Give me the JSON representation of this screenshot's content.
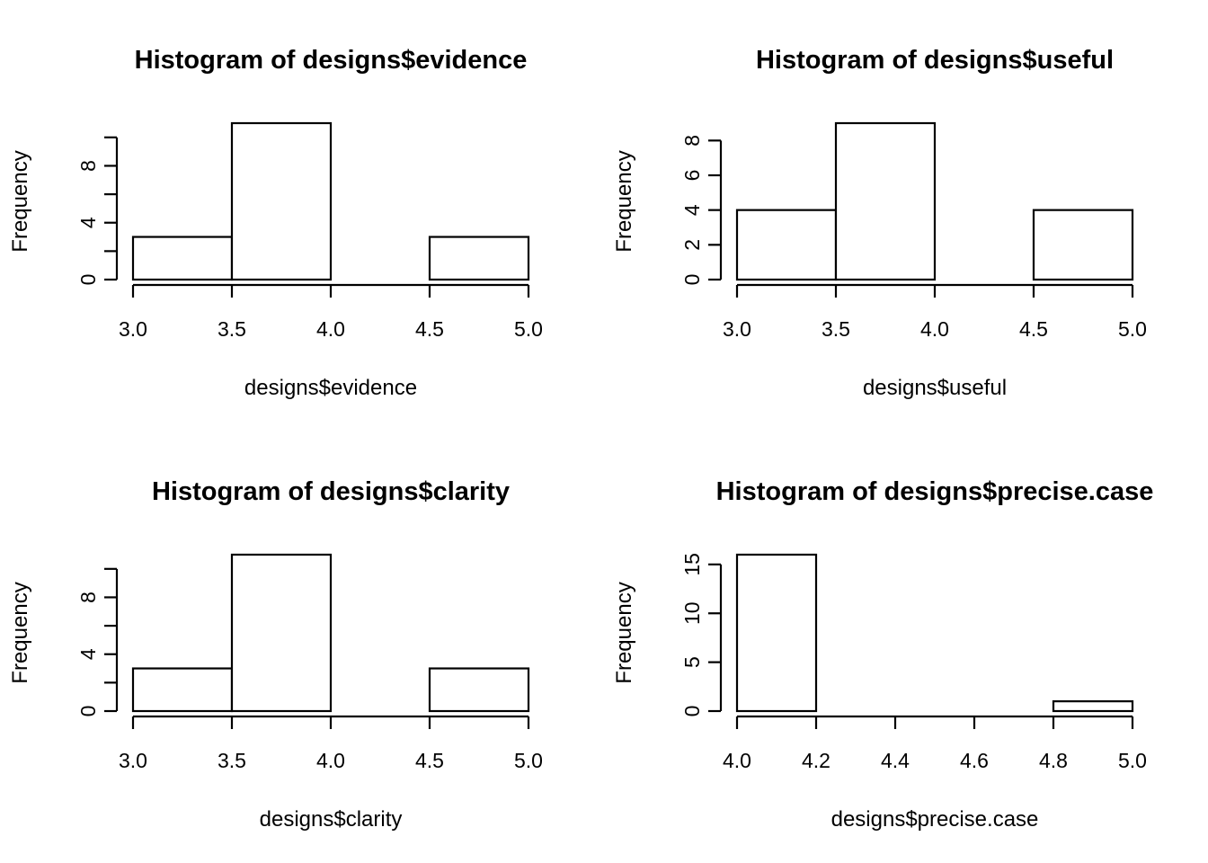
{
  "chart_data": [
    {
      "type": "bar",
      "title": "Histogram of designs$evidence",
      "xlabel": "designs$evidence",
      "ylabel": "Frequency",
      "bin_edges": [
        3.0,
        3.5,
        4.0,
        4.5,
        5.0
      ],
      "values": [
        3,
        11,
        0,
        3
      ],
      "x_ticks": [
        "3.0",
        "3.5",
        "4.0",
        "4.5",
        "5.0"
      ],
      "y_ticks": [
        0,
        2,
        4,
        6,
        8,
        10
      ],
      "y_tick_labels": [
        "0",
        "",
        "4",
        "",
        "8",
        ""
      ],
      "xlim": [
        3.0,
        5.0
      ],
      "ylim": [
        0,
        11
      ]
    },
    {
      "type": "bar",
      "title": "Histogram of designs$useful",
      "xlabel": "designs$useful",
      "ylabel": "Frequency",
      "bin_edges": [
        3.0,
        3.5,
        4.0,
        4.5,
        5.0
      ],
      "values": [
        4,
        9,
        0,
        4
      ],
      "x_ticks": [
        "3.0",
        "3.5",
        "4.0",
        "4.5",
        "5.0"
      ],
      "y_ticks": [
        0,
        2,
        4,
        6,
        8
      ],
      "y_tick_labels": [
        "0",
        "2",
        "4",
        "6",
        "8"
      ],
      "xlim": [
        3.0,
        5.0
      ],
      "ylim": [
        0,
        9
      ]
    },
    {
      "type": "bar",
      "title": "Histogram of designs$clarity",
      "xlabel": "designs$clarity",
      "ylabel": "Frequency",
      "bin_edges": [
        3.0,
        3.5,
        4.0,
        4.5,
        5.0
      ],
      "values": [
        3,
        11,
        0,
        3
      ],
      "x_ticks": [
        "3.0",
        "3.5",
        "4.0",
        "4.5",
        "5.0"
      ],
      "y_ticks": [
        0,
        2,
        4,
        6,
        8,
        10
      ],
      "y_tick_labels": [
        "0",
        "",
        "4",
        "",
        "8",
        ""
      ],
      "xlim": [
        3.0,
        5.0
      ],
      "ylim": [
        0,
        11
      ]
    },
    {
      "type": "bar",
      "title": "Histogram of designs$precise.case",
      "xlabel": "designs$precise.case",
      "ylabel": "Frequency",
      "bin_edges": [
        4.0,
        4.2,
        4.4,
        4.6,
        4.8,
        5.0
      ],
      "values": [
        16,
        0,
        0,
        0,
        1
      ],
      "x_ticks": [
        "4.0",
        "4.2",
        "4.4",
        "4.6",
        "4.8",
        "5.0"
      ],
      "y_ticks": [
        0,
        5,
        10,
        15
      ],
      "y_tick_labels": [
        "0",
        "5",
        "10",
        "15"
      ],
      "xlim": [
        4.0,
        5.0
      ],
      "ylim": [
        0,
        16
      ]
    }
  ]
}
